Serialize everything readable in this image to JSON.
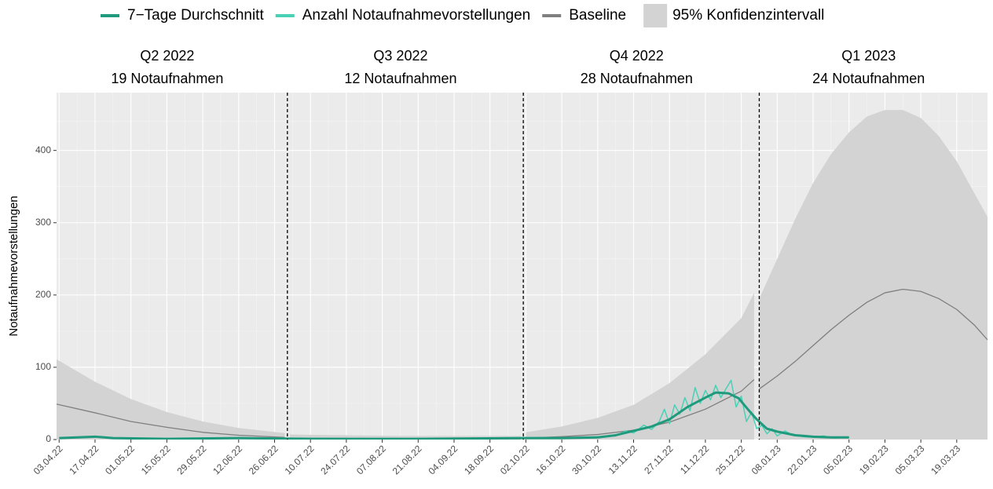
{
  "chart_data": {
    "type": "line",
    "y_label": "Notaufnahmevorstellungen",
    "xlim": [
      "02.04.22",
      "31.03.23"
    ],
    "ylim": [
      0,
      480
    ],
    "yticks": [
      0,
      100,
      200,
      300,
      400
    ],
    "xticks": [
      "03.04.22",
      "17.04.22",
      "01.05.22",
      "15.05.22",
      "29.05.22",
      "12.06.22",
      "26.06.22",
      "10.07.22",
      "24.07.22",
      "07.08.22",
      "21.08.22",
      "04.09.22",
      "18.09.22",
      "02.10.22",
      "16.10.22",
      "30.10.22",
      "13.11.22",
      "27.11.22",
      "11.12.22",
      "25.12.22",
      "08.01.23",
      "22.01.23",
      "05.02.23",
      "19.02.23",
      "05.03.23",
      "19.03.23"
    ],
    "grid": true,
    "dividers": [
      "01.07.22",
      "01.10.22",
      "01.01.23"
    ],
    "quarters": [
      {
        "title": "Q2 2022",
        "subtitle": "19 Notaufnahmen"
      },
      {
        "title": "Q3 2022",
        "subtitle": "12 Notaufnahmen"
      },
      {
        "title": "Q4 2022",
        "subtitle": "28 Notaufnahmen"
      },
      {
        "title": "Q1 2023",
        "subtitle": "24 Notaufnahmen"
      }
    ],
    "series": [
      {
        "name": "7−Tage Durchschnitt",
        "color": "#1f9a7c",
        "style": "line",
        "x": [
          "03.04.22",
          "17.04.22",
          "24.04.22",
          "15.05.22",
          "12.06.22",
          "10.07.22",
          "21.08.22",
          "02.10.22",
          "16.10.22",
          "30.10.22",
          "06.11.22",
          "13.11.22",
          "20.11.22",
          "27.11.22",
          "04.12.22",
          "11.12.22",
          "15.12.22",
          "20.12.22",
          "24.12.22",
          "28.12.22",
          "31.12.22",
          "04.01.23",
          "08.01.23",
          "15.01.23",
          "22.01.23",
          "29.01.23",
          "05.02.23"
        ],
        "values": [
          2,
          4,
          2,
          1,
          2,
          1,
          1,
          2,
          2,
          3,
          6,
          12,
          18,
          28,
          45,
          58,
          65,
          64,
          57,
          40,
          28,
          15,
          11,
          6,
          4,
          3,
          3
        ]
      },
      {
        "name": "Anzahl Notaufnahmevorstellungen",
        "color": "#48d1b5",
        "style": "line",
        "x": [
          "03.04.22",
          "17.04.22",
          "01.05.22",
          "12.06.22",
          "21.08.22",
          "16.10.22",
          "30.10.22",
          "06.11.22",
          "10.11.22",
          "13.11.22",
          "17.11.22",
          "20.11.22",
          "23.11.22",
          "25.11.22",
          "27.11.22",
          "29.11.22",
          "01.12.22",
          "03.12.22",
          "05.12.22",
          "07.12.22",
          "09.12.22",
          "11.12.22",
          "13.12.22",
          "15.12.22",
          "17.12.22",
          "19.12.22",
          "21.12.22",
          "23.12.22",
          "25.12.22",
          "27.12.22",
          "29.12.22",
          "31.12.22",
          "02.01.23",
          "04.01.23",
          "06.01.23",
          "08.01.23",
          "11.01.23",
          "14.01.23",
          "18.01.23",
          "22.01.23",
          "26.01.23",
          "30.01.23",
          "05.02.23"
        ],
        "values": [
          2,
          4,
          1,
          2,
          1,
          2,
          4,
          5,
          12,
          9,
          20,
          14,
          25,
          42,
          22,
          48,
          35,
          58,
          40,
          72,
          50,
          68,
          55,
          75,
          58,
          70,
          82,
          45,
          60,
          25,
          38,
          15,
          20,
          8,
          15,
          5,
          12,
          6,
          4,
          3,
          5,
          2,
          3
        ]
      },
      {
        "name": "Baseline",
        "color": "#7f7f7f",
        "style": "line",
        "x": [
          "02.04.22",
          "17.04.22",
          "01.05.22",
          "15.05.22",
          "29.05.22",
          "12.06.22",
          "30.06.22",
          "01.07.22",
          "02.07.22",
          "15.08.22",
          "30.09.22",
          "01.10.22",
          "02.10.22",
          "16.10.22",
          "30.10.22",
          "13.11.22",
          "27.11.22",
          "11.12.22",
          "25.12.22",
          "30.12.22",
          "31.12.22",
          "01.01.23",
          "08.01.23",
          "15.01.23",
          "22.01.23",
          "29.01.23",
          "05.02.23",
          "12.02.23",
          "19.02.23",
          "26.02.23",
          "05.03.23",
          "12.03.23",
          "19.03.23",
          "26.03.23",
          "31.03.23"
        ],
        "values": [
          49,
          37,
          25,
          17,
          10,
          6,
          3,
          null,
          2,
          1,
          1,
          null,
          2,
          4,
          7,
          13,
          24,
          42,
          67,
          83,
          null,
          70,
          88,
          108,
          130,
          152,
          172,
          190,
          203,
          208,
          205,
          195,
          180,
          158,
          138
        ]
      },
      {
        "name": "95% Konfidenzintervall",
        "color": "#d3d3d3",
        "style": "ribbon",
        "x": [
          "02.04.22",
          "17.04.22",
          "01.05.22",
          "15.05.22",
          "29.05.22",
          "12.06.22",
          "30.06.22",
          "01.07.22",
          "02.07.22",
          "15.08.22",
          "30.09.22",
          "01.10.22",
          "02.10.22",
          "16.10.22",
          "30.10.22",
          "13.11.22",
          "27.11.22",
          "11.12.22",
          "25.12.22",
          "30.12.22",
          "31.12.22",
          "01.01.23",
          "08.01.23",
          "15.01.23",
          "22.01.23",
          "29.01.23",
          "05.02.23",
          "12.02.23",
          "19.02.23",
          "26.02.23",
          "05.03.23",
          "12.03.23",
          "19.03.23",
          "26.03.23",
          "31.03.23"
        ],
        "upper": [
          111,
          80,
          56,
          38,
          25,
          16,
          9,
          null,
          7,
          5,
          5,
          null,
          10,
          18,
          30,
          48,
          78,
          118,
          168,
          203,
          null,
          195,
          250,
          305,
          355,
          395,
          425,
          447,
          456,
          456,
          445,
          420,
          385,
          340,
          308
        ],
        "lower": [
          0,
          0,
          0,
          0,
          0,
          0,
          0,
          null,
          0,
          0,
          0,
          null,
          0,
          0,
          0,
          0,
          0,
          0,
          0,
          0,
          null,
          0,
          0,
          0,
          0,
          0,
          0,
          0,
          0,
          0,
          0,
          0,
          0,
          0,
          0
        ]
      }
    ]
  }
}
